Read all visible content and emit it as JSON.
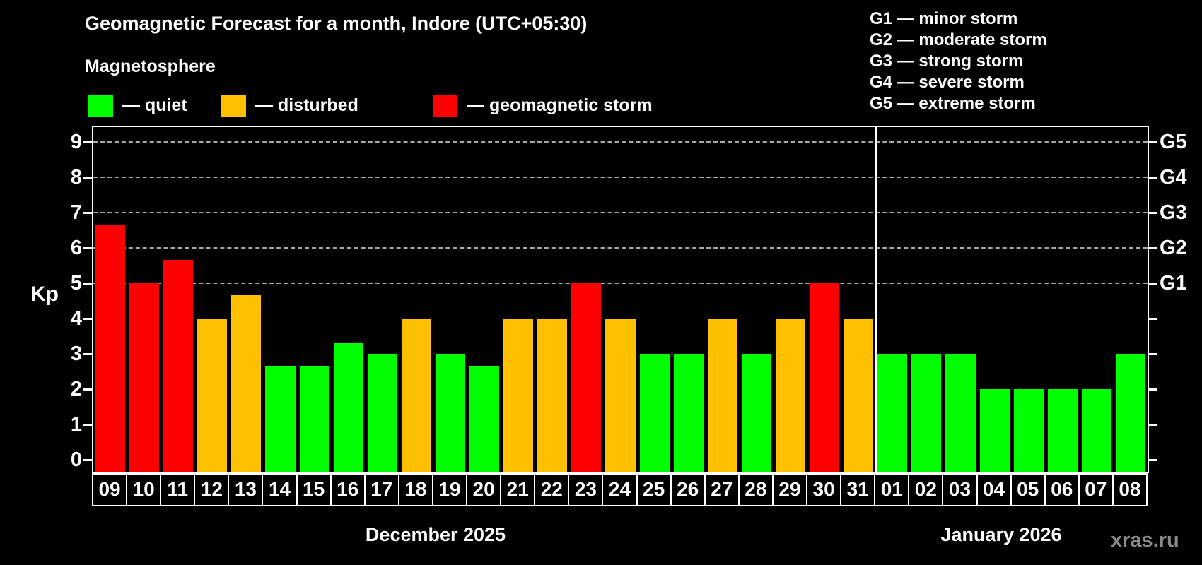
{
  "title": "Geomagnetic Forecast for a month, Indore (UTC+05:30)",
  "subtitle": "Magnetosphere",
  "bar_legend": [
    {
      "status": "quiet",
      "label": "— quiet",
      "color": "#00ff00"
    },
    {
      "status": "disturbed",
      "label": "— disturbed",
      "color": "#ffc000"
    },
    {
      "status": "storm",
      "label": "— geomagnetic storm",
      "color": "#ff0000"
    }
  ],
  "g_legend": [
    {
      "text": "G1 — minor storm"
    },
    {
      "text": "G2 — moderate storm"
    },
    {
      "text": "G3 — strong storm"
    },
    {
      "text": "G4 — severe storm"
    },
    {
      "text": "G5 — extreme storm"
    }
  ],
  "axis": {
    "y_label": "Kp"
  },
  "months": [
    {
      "label": "December 2025"
    },
    {
      "label": "January 2026"
    }
  ],
  "watermark": "xras.ru",
  "chart_data": {
    "type": "bar",
    "title": "Geomagnetic Forecast for a month, Indore (UTC+05:30)",
    "ylabel": "Kp",
    "ylim": [
      0,
      9.4
    ],
    "y_ticks": [
      0,
      1,
      2,
      3,
      4,
      5,
      6,
      7,
      8,
      9
    ],
    "gridlines_at": [
      5,
      6,
      7,
      8,
      9
    ],
    "grid": "dashed horizontal lines at G-storm levels only",
    "legend_position": "top",
    "right_axis": [
      {
        "label": "G1",
        "kp": 5
      },
      {
        "label": "G2",
        "kp": 6
      },
      {
        "label": "G3",
        "kp": 7
      },
      {
        "label": "G4",
        "kp": 8
      },
      {
        "label": "G5",
        "kp": 9
      }
    ],
    "colors": {
      "quiet": "#00ff00",
      "disturbed": "#ffc000",
      "storm": "#ff0000"
    },
    "bars": [
      {
        "month": 0,
        "day": "09",
        "kp": 6.67,
        "status": "storm"
      },
      {
        "month": 0,
        "day": "10",
        "kp": 5,
        "status": "storm"
      },
      {
        "month": 0,
        "day": "11",
        "kp": 5.67,
        "status": "storm"
      },
      {
        "month": 0,
        "day": "12",
        "kp": 4,
        "status": "disturbed"
      },
      {
        "month": 0,
        "day": "13",
        "kp": 4.67,
        "status": "disturbed"
      },
      {
        "month": 0,
        "day": "14",
        "kp": 2.67,
        "status": "quiet"
      },
      {
        "month": 0,
        "day": "15",
        "kp": 2.67,
        "status": "quiet"
      },
      {
        "month": 0,
        "day": "16",
        "kp": 3.33,
        "status": "quiet"
      },
      {
        "month": 0,
        "day": "17",
        "kp": 3,
        "status": "quiet"
      },
      {
        "month": 0,
        "day": "18",
        "kp": 4,
        "status": "disturbed"
      },
      {
        "month": 0,
        "day": "19",
        "kp": 3,
        "status": "quiet"
      },
      {
        "month": 0,
        "day": "20",
        "kp": 2.67,
        "status": "quiet"
      },
      {
        "month": 0,
        "day": "21",
        "kp": 4,
        "status": "disturbed"
      },
      {
        "month": 0,
        "day": "22",
        "kp": 4,
        "status": "disturbed"
      },
      {
        "month": 0,
        "day": "23",
        "kp": 5,
        "status": "storm"
      },
      {
        "month": 0,
        "day": "24",
        "kp": 4,
        "status": "disturbed"
      },
      {
        "month": 0,
        "day": "25",
        "kp": 3,
        "status": "quiet"
      },
      {
        "month": 0,
        "day": "26",
        "kp": 3,
        "status": "quiet"
      },
      {
        "month": 0,
        "day": "27",
        "kp": 4,
        "status": "disturbed"
      },
      {
        "month": 0,
        "day": "28",
        "kp": 3,
        "status": "quiet"
      },
      {
        "month": 0,
        "day": "29",
        "kp": 4,
        "status": "disturbed"
      },
      {
        "month": 0,
        "day": "30",
        "kp": 5,
        "status": "storm"
      },
      {
        "month": 0,
        "day": "31",
        "kp": 4,
        "status": "disturbed"
      },
      {
        "month": 1,
        "day": "01",
        "kp": 3,
        "status": "quiet"
      },
      {
        "month": 1,
        "day": "02",
        "kp": 3,
        "status": "quiet"
      },
      {
        "month": 1,
        "day": "03",
        "kp": 3,
        "status": "quiet"
      },
      {
        "month": 1,
        "day": "04",
        "kp": 2,
        "status": "quiet"
      },
      {
        "month": 1,
        "day": "05",
        "kp": 2,
        "status": "quiet"
      },
      {
        "month": 1,
        "day": "06",
        "kp": 2,
        "status": "quiet"
      },
      {
        "month": 1,
        "day": "07",
        "kp": 2,
        "status": "quiet"
      },
      {
        "month": 1,
        "day": "08",
        "kp": 3,
        "status": "quiet"
      }
    ]
  }
}
